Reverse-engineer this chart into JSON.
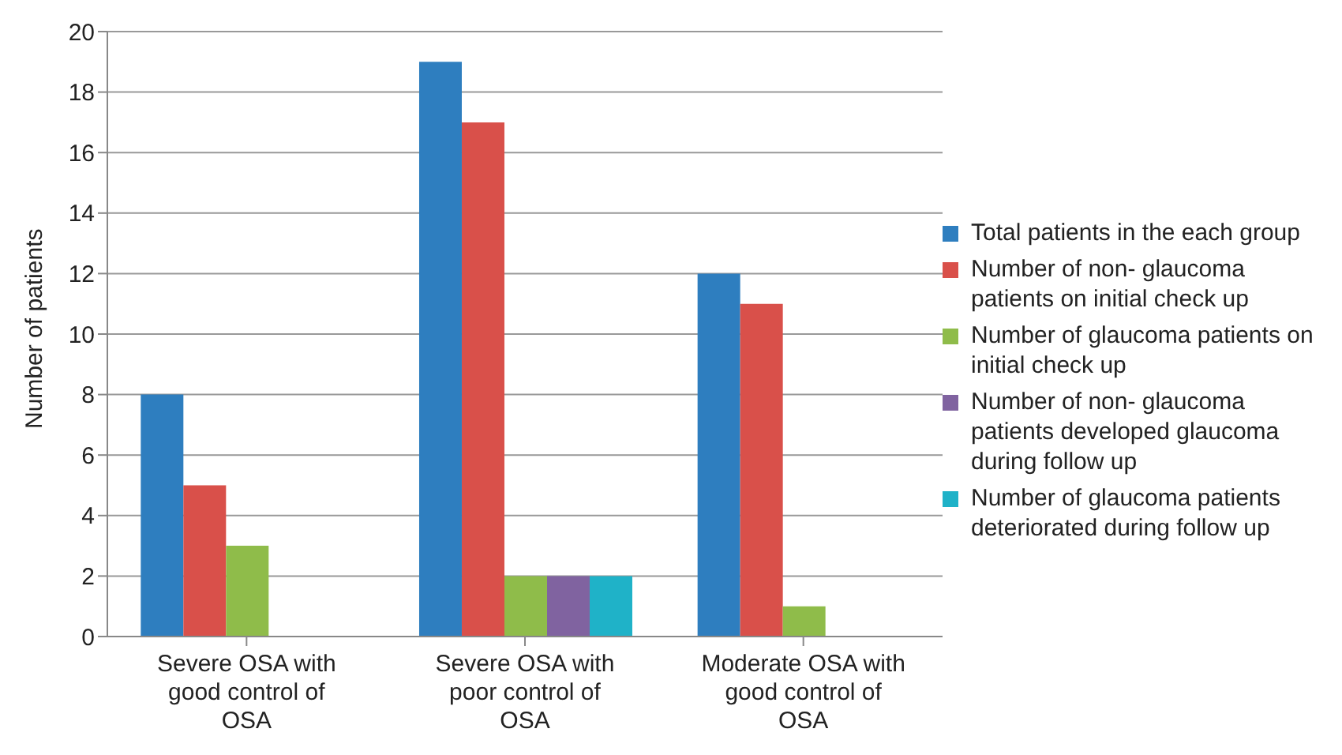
{
  "chart_data": {
    "type": "bar",
    "ylabel": "Number of patients",
    "categories": [
      "Severe OSA with good control of OSA",
      "Severe OSA with poor control of OSA",
      "Moderate OSA with good control of OSA"
    ],
    "series": [
      {
        "name": "Total patients in the each group",
        "color": "#2e7ebf",
        "values": [
          8,
          19,
          12
        ]
      },
      {
        "name": "Number of non- glaucoma patients on initial check up",
        "color": "#d9504a",
        "values": [
          5,
          17,
          11
        ]
      },
      {
        "name": "Number of glaucoma patients on initial check up",
        "color": "#8fbc4a",
        "values": [
          3,
          2,
          1
        ]
      },
      {
        "name": "Number of non- glaucoma patients developed glaucoma during follow up",
        "color": "#8063a0",
        "values": [
          0,
          2,
          0
        ]
      },
      {
        "name": "Number of glaucoma patients deteriorated during follow up",
        "color": "#1fb2c8",
        "values": [
          0,
          2,
          0
        ]
      }
    ],
    "ylim": [
      0,
      20
    ],
    "yticks": [
      0,
      2,
      4,
      6,
      8,
      10,
      12,
      14,
      16,
      18,
      20
    ],
    "grid": "y",
    "legend": "right"
  }
}
